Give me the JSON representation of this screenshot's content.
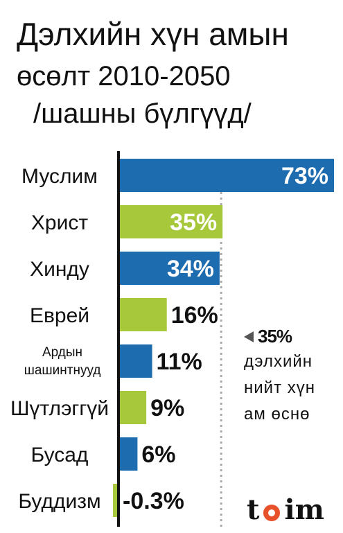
{
  "title_lines": [
    "Дэлхийн хүн амын",
    "өсөлт  2010-2050",
    "/шашны бүлгүүд/"
  ],
  "colors": {
    "blue": "#1e6cb0",
    "green": "#a6c83a",
    "axis": "#111111",
    "dotted": "#aaaaaa"
  },
  "chart_data": {
    "type": "bar",
    "orientation": "horizontal",
    "title": "Дэлхийн хүн амын өсөлт  2010-2050 /шашны бүлгүүд/",
    "categories": [
      "Муслим",
      "Христ",
      "Хинду",
      "Еврей",
      [
        "Ардын",
        "шашинтнууд"
      ],
      "Шүтлэггүй",
      "Бусад",
      "Буддизм"
    ],
    "values": [
      73,
      35,
      34,
      16,
      11,
      9,
      6,
      -0.3
    ],
    "value_labels": [
      "73%",
      "35%",
      "34%",
      "16%",
      "11%",
      "9%",
      "6%",
      "-0.3%"
    ],
    "bar_colors": [
      "#1e6cb0",
      "#a6c83a",
      "#1e6cb0",
      "#a6c83a",
      "#1e6cb0",
      "#a6c83a",
      "#1e6cb0",
      "#a6c83a"
    ],
    "reference_line": {
      "value": 35,
      "label_value": "35%",
      "label_text": [
        "дэлхийн",
        "нийт хүн",
        "ам өснө"
      ]
    },
    "xlim": [
      -0.3,
      73
    ],
    "grid": false
  },
  "logo": {
    "left": "t",
    "right": "im"
  }
}
